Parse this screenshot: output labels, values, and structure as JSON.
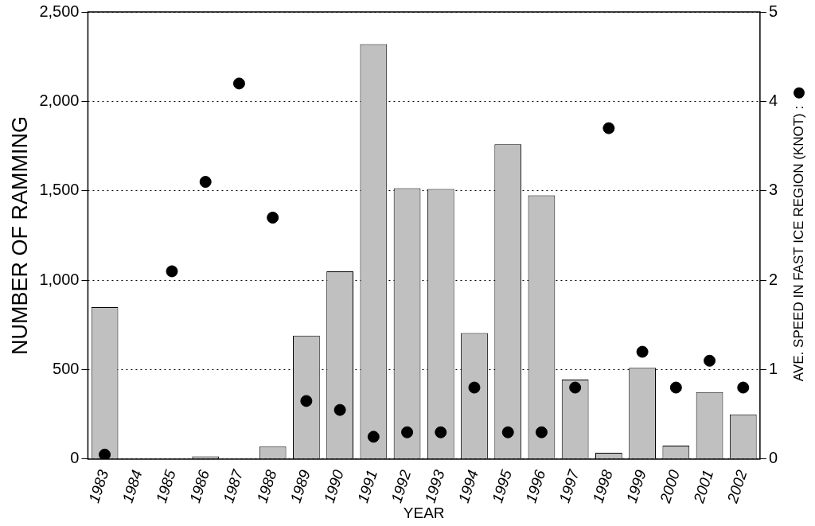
{
  "chart_data": {
    "type": "bar",
    "x_label": "YEAR",
    "y_label": "NUMBER OF RAMMING",
    "y2_label": "AVE. SPEED IN FAST ICE REGION (KNOT) :",
    "categories": [
      "1983",
      "1984",
      "1985",
      "1986",
      "1987",
      "1988",
      "1989",
      "1990",
      "1991",
      "1992",
      "1993",
      "1994",
      "1995",
      "1996",
      "1997",
      "1998",
      "1999",
      "2000",
      "2001",
      "2002"
    ],
    "series": [
      {
        "name": "NUMBER OF RAMMING",
        "type": "bar",
        "color": "#c0c0c0",
        "values": [
          850,
          null,
          null,
          15,
          null,
          70,
          690,
          1050,
          2320,
          1515,
          1510,
          705,
          1760,
          1475,
          445,
          35,
          510,
          75,
          375,
          250
        ]
      },
      {
        "name": "AVE. SPEED IN FAST ICE REGION (KNOT)",
        "type": "scatter",
        "axis": "y2",
        "color": "#000000",
        "marker": "circle",
        "values": [
          0.05,
          null,
          2.1,
          3.1,
          4.2,
          2.7,
          0.65,
          0.55,
          0.25,
          0.3,
          0.3,
          0.8,
          0.3,
          0.3,
          0.8,
          3.7,
          1.2,
          0.8,
          1.1,
          0.8
        ]
      }
    ],
    "ylim": [
      0,
      2500
    ],
    "yticks": [
      0,
      500,
      1000,
      1500,
      2000,
      2500
    ],
    "y2lim": [
      0,
      5
    ],
    "y2ticks": [
      0,
      1,
      2,
      3,
      4,
      5
    ],
    "grid": true
  }
}
